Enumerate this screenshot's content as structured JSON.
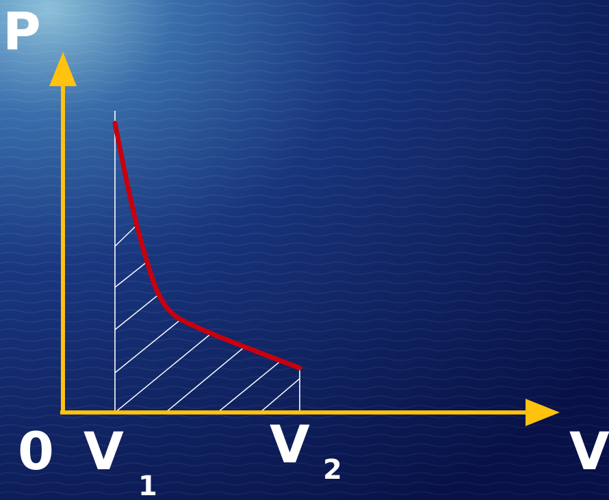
{
  "labels": {
    "p_axis": "P",
    "v_axis": "V",
    "origin": "0",
    "v1_main": "V",
    "v1_sub": "1",
    "v2_main": "V",
    "v2_sub": "2"
  },
  "colors": {
    "axis": "#ffc20e",
    "curve": "#c8000e",
    "hatch": "#ffffff",
    "background_dark": "#0b1a5c",
    "background_light": "#3c74b4"
  }
}
